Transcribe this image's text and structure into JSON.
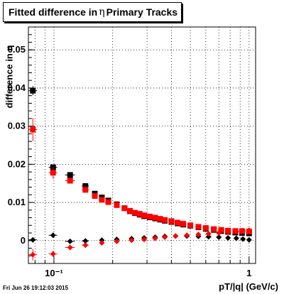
{
  "title": {
    "prefix": "Fitted difference in",
    "symbol": "η",
    "suffix": "Primary Tracks"
  },
  "footer": "Fri Jun 26 19:12:03 2015",
  "chart_data": {
    "type": "scatter",
    "title": "Fitted difference in η Primary Tracks",
    "xlabel": "pT/|q| (GeV/c)",
    "ylabel": "difference in η",
    "xscale": "log",
    "xlim": [
      0.074,
      1.08
    ],
    "ylim": [
      -0.006,
      0.056
    ],
    "grid": true,
    "x_major_ticks": [
      {
        "value": 0.1,
        "label": "10⁻¹"
      },
      {
        "value": 1,
        "label": "1"
      }
    ],
    "yticks": [
      0,
      0.01,
      0.02,
      0.03,
      0.04,
      0.05
    ],
    "ytick_labels": [
      "0",
      "0.01",
      "0.02",
      "0.03",
      "0.04",
      "0.05"
    ],
    "colors": {
      "black": "#000000",
      "red": "#ff0000"
    },
    "series": [
      {
        "color": "#000000",
        "marker": "square",
        "points": [
          {
            "x": 0.078,
            "y": 0.0393,
            "xerr": 0.004,
            "yerr": 0.0012
          },
          {
            "x": 0.099,
            "y": 0.0192,
            "xerr": 0.005,
            "yerr": 0.0008
          },
          {
            "x": 0.121,
            "y": 0.0172,
            "xerr": 0.007,
            "yerr": 0.0007
          },
          {
            "x": 0.145,
            "y": 0.0143,
            "xerr": 0.006,
            "yerr": 0.0005
          },
          {
            "x": 0.162,
            "y": 0.0123,
            "xerr": 0.005,
            "yerr": 0.0004
          },
          {
            "x": 0.176,
            "y": 0.0113,
            "xerr": 0.004,
            "yerr": 0.0004
          },
          {
            "x": 0.19,
            "y": 0.0105,
            "xerr": 0.004,
            "yerr": 0.0003
          },
          {
            "x": 0.21,
            "y": 0.0095,
            "xerr": 0.004,
            "yerr": 0.0003
          },
          {
            "x": 0.23,
            "y": 0.0085,
            "xerr": 0.004,
            "yerr": 0.0003
          },
          {
            "x": 0.245,
            "y": 0.0077,
            "xerr": 0.004,
            "yerr": 0.0003
          },
          {
            "x": 0.26,
            "y": 0.0072,
            "xerr": 0.004,
            "yerr": 0.0003
          },
          {
            "x": 0.275,
            "y": 0.0068,
            "xerr": 0.004,
            "yerr": 0.0003
          },
          {
            "x": 0.29,
            "y": 0.0064,
            "xerr": 0.004,
            "yerr": 0.0003
          },
          {
            "x": 0.31,
            "y": 0.0061,
            "xerr": 0.004,
            "yerr": 0.0003
          },
          {
            "x": 0.33,
            "y": 0.0058,
            "xerr": 0.004,
            "yerr": 0.0003
          },
          {
            "x": 0.35,
            "y": 0.0055,
            "xerr": 0.005,
            "yerr": 0.0003
          },
          {
            "x": 0.37,
            "y": 0.0052,
            "xerr": 0.005,
            "yerr": 0.0003
          },
          {
            "x": 0.4,
            "y": 0.0049,
            "xerr": 0.005,
            "yerr": 0.0003
          },
          {
            "x": 0.43,
            "y": 0.0045,
            "xerr": 0.005,
            "yerr": 0.0003
          },
          {
            "x": 0.46,
            "y": 0.0042,
            "xerr": 0.005,
            "yerr": 0.0003
          },
          {
            "x": 0.5,
            "y": 0.0039,
            "xerr": 0.006,
            "yerr": 0.0003
          },
          {
            "x": 0.55,
            "y": 0.0035,
            "xerr": 0.006,
            "yerr": 0.0003
          },
          {
            "x": 0.6,
            "y": 0.0031,
            "xerr": 0.007,
            "yerr": 0.0003
          },
          {
            "x": 0.66,
            "y": 0.0028,
            "xerr": 0.008,
            "yerr": 0.0003
          },
          {
            "x": 0.72,
            "y": 0.0025,
            "xerr": 0.008,
            "yerr": 0.0003
          },
          {
            "x": 0.78,
            "y": 0.0023,
            "xerr": 0.009,
            "yerr": 0.0003
          },
          {
            "x": 0.85,
            "y": 0.0021,
            "xerr": 0.01,
            "yerr": 0.0004
          },
          {
            "x": 0.92,
            "y": 0.002,
            "xerr": 0.01,
            "yerr": 0.0004
          },
          {
            "x": 1.0,
            "y": 0.0019,
            "xerr": 0.012,
            "yerr": 0.0004
          }
        ]
      },
      {
        "color": "#ff0000",
        "marker": "square",
        "points": [
          {
            "x": 0.078,
            "y": 0.0291,
            "xerr": 0.004,
            "yerr": 0.003
          },
          {
            "x": 0.099,
            "y": 0.0178,
            "xerr": 0.005,
            "yerr": 0.0015
          },
          {
            "x": 0.121,
            "y": 0.0157,
            "xerr": 0.007,
            "yerr": 0.0007
          },
          {
            "x": 0.145,
            "y": 0.0133,
            "xerr": 0.006,
            "yerr": 0.0005
          },
          {
            "x": 0.162,
            "y": 0.0117,
            "xerr": 0.005,
            "yerr": 0.0004
          },
          {
            "x": 0.176,
            "y": 0.0107,
            "xerr": 0.004,
            "yerr": 0.0004
          },
          {
            "x": 0.19,
            "y": 0.0101,
            "xerr": 0.004,
            "yerr": 0.0003
          },
          {
            "x": 0.21,
            "y": 0.0093,
            "xerr": 0.004,
            "yerr": 0.0003
          },
          {
            "x": 0.23,
            "y": 0.0085,
            "xerr": 0.004,
            "yerr": 0.0003
          },
          {
            "x": 0.245,
            "y": 0.0078,
            "xerr": 0.004,
            "yerr": 0.0003
          },
          {
            "x": 0.26,
            "y": 0.0073,
            "xerr": 0.004,
            "yerr": 0.0003
          },
          {
            "x": 0.275,
            "y": 0.007,
            "xerr": 0.004,
            "yerr": 0.0003
          },
          {
            "x": 0.29,
            "y": 0.0066,
            "xerr": 0.004,
            "yerr": 0.0003
          },
          {
            "x": 0.31,
            "y": 0.0063,
            "xerr": 0.004,
            "yerr": 0.0003
          },
          {
            "x": 0.33,
            "y": 0.006,
            "xerr": 0.004,
            "yerr": 0.0003
          },
          {
            "x": 0.35,
            "y": 0.0057,
            "xerr": 0.005,
            "yerr": 0.0003
          },
          {
            "x": 0.37,
            "y": 0.0054,
            "xerr": 0.005,
            "yerr": 0.0003
          },
          {
            "x": 0.4,
            "y": 0.0051,
            "xerr": 0.005,
            "yerr": 0.0003
          },
          {
            "x": 0.43,
            "y": 0.0047,
            "xerr": 0.005,
            "yerr": 0.0003
          },
          {
            "x": 0.46,
            "y": 0.0044,
            "xerr": 0.005,
            "yerr": 0.0003
          },
          {
            "x": 0.5,
            "y": 0.004,
            "xerr": 0.006,
            "yerr": 0.0003
          },
          {
            "x": 0.55,
            "y": 0.0036,
            "xerr": 0.006,
            "yerr": 0.0003
          },
          {
            "x": 0.6,
            "y": 0.0033,
            "xerr": 0.007,
            "yerr": 0.0003
          },
          {
            "x": 0.66,
            "y": 0.003,
            "xerr": 0.008,
            "yerr": 0.0003
          },
          {
            "x": 0.72,
            "y": 0.0028,
            "xerr": 0.008,
            "yerr": 0.0003
          },
          {
            "x": 0.78,
            "y": 0.0026,
            "xerr": 0.009,
            "yerr": 0.0003
          },
          {
            "x": 0.85,
            "y": 0.0025,
            "xerr": 0.01,
            "yerr": 0.0004
          },
          {
            "x": 0.92,
            "y": 0.0025,
            "xerr": 0.01,
            "yerr": 0.0004
          },
          {
            "x": 1.0,
            "y": 0.0024,
            "xerr": 0.012,
            "yerr": 0.0004
          }
        ]
      },
      {
        "color": "#000000",
        "marker": "diamond",
        "points": [
          {
            "x": 0.078,
            "y": 0.0002,
            "xerr": 0.004,
            "yerr": 0.0003
          },
          {
            "x": 0.099,
            "y": 0.0014,
            "xerr": 0.005,
            "yerr": 0.0004
          },
          {
            "x": 0.121,
            "y": -0.0002,
            "xerr": 0.007,
            "yerr": 0.0003
          },
          {
            "x": 0.145,
            "y": -0.0001,
            "xerr": 0.006,
            "yerr": 0.0003
          },
          {
            "x": 0.176,
            "y": 0.0001,
            "xerr": 0.005,
            "yerr": 0.0002
          },
          {
            "x": 0.21,
            "y": 0.0003,
            "xerr": 0.005,
            "yerr": 0.0002
          },
          {
            "x": 0.25,
            "y": 0.0005,
            "xerr": 0.005,
            "yerr": 0.0002
          },
          {
            "x": 0.29,
            "y": 0.0007,
            "xerr": 0.005,
            "yerr": 0.0002
          },
          {
            "x": 0.33,
            "y": 0.0009,
            "xerr": 0.005,
            "yerr": 0.0002
          },
          {
            "x": 0.37,
            "y": 0.0011,
            "xerr": 0.005,
            "yerr": 0.0002
          },
          {
            "x": 0.42,
            "y": 0.0012,
            "xerr": 0.005,
            "yerr": 0.0002
          },
          {
            "x": 0.48,
            "y": 0.0012,
            "xerr": 0.006,
            "yerr": 0.0002
          },
          {
            "x": 0.55,
            "y": 0.0011,
            "xerr": 0.006,
            "yerr": 0.0002
          },
          {
            "x": 0.62,
            "y": 0.001,
            "xerr": 0.007,
            "yerr": 0.0002
          },
          {
            "x": 0.7,
            "y": 0.0009,
            "xerr": 0.008,
            "yerr": 0.0002
          },
          {
            "x": 0.78,
            "y": 0.0007,
            "xerr": 0.009,
            "yerr": 0.0003
          },
          {
            "x": 0.86,
            "y": 0.0006,
            "xerr": 0.01,
            "yerr": 0.0003
          },
          {
            "x": 0.93,
            "y": 0.0004,
            "xerr": 0.01,
            "yerr": 0.0003
          },
          {
            "x": 1.0,
            "y": 0.0002,
            "xerr": 0.012,
            "yerr": 0.0003
          }
        ]
      },
      {
        "color": "#ff0000",
        "marker": "diamond",
        "points": [
          {
            "x": 0.078,
            "y": -0.0037,
            "xerr": 0.004,
            "yerr": 0.0015
          },
          {
            "x": 0.099,
            "y": -0.0035,
            "xerr": 0.005,
            "yerr": 0.0008
          },
          {
            "x": 0.121,
            "y": -0.0018,
            "xerr": 0.007,
            "yerr": 0.0005
          },
          {
            "x": 0.145,
            "y": -0.0012,
            "xerr": 0.006,
            "yerr": 0.0003
          },
          {
            "x": 0.176,
            "y": -0.0006,
            "xerr": 0.005,
            "yerr": 0.0003
          },
          {
            "x": 0.21,
            "y": -0.0002,
            "xerr": 0.005,
            "yerr": 0.0002
          },
          {
            "x": 0.25,
            "y": 0.0001,
            "xerr": 0.005,
            "yerr": 0.0002
          },
          {
            "x": 0.29,
            "y": 0.0003,
            "xerr": 0.005,
            "yerr": 0.0002
          },
          {
            "x": 0.33,
            "y": 0.0006,
            "xerr": 0.005,
            "yerr": 0.0002
          },
          {
            "x": 0.37,
            "y": 0.0009,
            "xerr": 0.005,
            "yerr": 0.0002
          },
          {
            "x": 0.42,
            "y": 0.0012,
            "xerr": 0.005,
            "yerr": 0.0002
          },
          {
            "x": 0.48,
            "y": 0.0014,
            "xerr": 0.006,
            "yerr": 0.0002
          },
          {
            "x": 0.55,
            "y": 0.0016,
            "xerr": 0.006,
            "yerr": 0.0002
          },
          {
            "x": 0.62,
            "y": 0.0018,
            "xerr": 0.007,
            "yerr": 0.0002
          },
          {
            "x": 0.7,
            "y": 0.002,
            "xerr": 0.008,
            "yerr": 0.0002
          },
          {
            "x": 0.78,
            "y": 0.0022,
            "xerr": 0.009,
            "yerr": 0.0003
          },
          {
            "x": 0.86,
            "y": 0.0024,
            "xerr": 0.01,
            "yerr": 0.0003
          },
          {
            "x": 0.93,
            "y": 0.0026,
            "xerr": 0.01,
            "yerr": 0.0003
          },
          {
            "x": 1.0,
            "y": 0.0027,
            "xerr": 0.012,
            "yerr": 0.0003
          }
        ]
      }
    ]
  }
}
